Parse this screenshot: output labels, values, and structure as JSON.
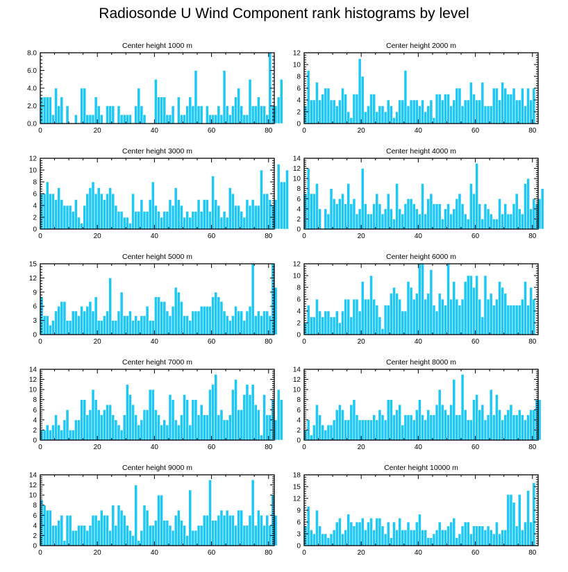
{
  "title": "Radiosonde U Wind Component rank histograms by level",
  "chart_data": [
    {
      "type": "bar",
      "title": "Center height 1000 m",
      "xlim": [
        0,
        82
      ],
      "ylim": [
        0,
        8
      ],
      "xticks": [
        0,
        20,
        40,
        60,
        80
      ],
      "yticks": [
        0,
        2,
        4,
        6,
        8
      ],
      "ytick_labels": [
        "0.0",
        "2.0",
        "4.0",
        "6.0",
        "8.0"
      ],
      "values": [
        3,
        3,
        3,
        3,
        1,
        4,
        2,
        3,
        0,
        2,
        0,
        0,
        1,
        0,
        4,
        4,
        1,
        1,
        1,
        3,
        2,
        1,
        0,
        2,
        2,
        2,
        0,
        2,
        1,
        1,
        1,
        1,
        0,
        2,
        4,
        2,
        1,
        0,
        0,
        0,
        5,
        3,
        3,
        3,
        1,
        1,
        2,
        0,
        3,
        1,
        1,
        2,
        3,
        2,
        6,
        2,
        2,
        0,
        2,
        1,
        1,
        1,
        2,
        1,
        6,
        2,
        1,
        2,
        3,
        4,
        2,
        1,
        1,
        5,
        2,
        2,
        3,
        2,
        2,
        1,
        8,
        2,
        2,
        3,
        5
      ]
    },
    {
      "type": "bar",
      "title": "Center height 2000 m",
      "xlim": [
        0,
        82
      ],
      "ylim": [
        0,
        12
      ],
      "xticks": [
        0,
        20,
        40,
        60,
        80
      ],
      "yticks": [
        0,
        2,
        4,
        6,
        8,
        10,
        12
      ],
      "ytick_labels": [
        "0",
        "2",
        "4",
        "6",
        "8",
        "10",
        "12"
      ],
      "values": [
        3,
        9,
        4,
        4,
        7,
        4,
        5,
        6,
        6,
        4,
        4,
        3,
        4,
        6,
        5,
        2,
        1,
        5,
        5,
        11,
        8,
        2,
        3,
        5,
        5,
        2,
        3,
        3,
        2,
        4,
        3,
        1,
        2,
        4,
        4,
        9,
        3,
        4,
        4,
        4,
        3,
        4,
        2,
        3,
        4,
        1,
        5,
        5,
        4,
        5,
        5,
        3,
        4,
        6,
        6,
        3,
        4,
        4,
        7,
        5,
        4,
        4,
        7,
        3,
        3,
        3,
        6,
        6,
        4,
        7,
        6,
        5,
        5,
        6,
        4,
        4,
        6,
        3,
        6,
        4,
        6
      ]
    },
    {
      "type": "bar",
      "title": "Center height 3000 m",
      "xlim": [
        0,
        82
      ],
      "ylim": [
        0,
        12
      ],
      "xticks": [
        0,
        20,
        40,
        60,
        80
      ],
      "yticks": [
        0,
        2,
        4,
        6,
        8,
        10,
        12
      ],
      "ytick_labels": [
        "0",
        "2",
        "4",
        "6",
        "8",
        "10",
        "12"
      ],
      "values": [
        6,
        6,
        8,
        6,
        6,
        5,
        7,
        5,
        4,
        4,
        4,
        3,
        5,
        2,
        1,
        4,
        6,
        7,
        8,
        6,
        7,
        6,
        5,
        6,
        7,
        6,
        4,
        3,
        3,
        2,
        2,
        1,
        6,
        3,
        3,
        5,
        3,
        3,
        5,
        8,
        4,
        3,
        2,
        3,
        3,
        5,
        4,
        7,
        5,
        4,
        2,
        3,
        2,
        3,
        3,
        5,
        3,
        5,
        5,
        3,
        9,
        5,
        4,
        2,
        3,
        2,
        7,
        6,
        4,
        4,
        3,
        2,
        5,
        4,
        5,
        4,
        4,
        10,
        6,
        6,
        5,
        4,
        5,
        11,
        8,
        8,
        10
      ]
    },
    {
      "type": "bar",
      "title": "Center height 4000 m",
      "xlim": [
        0,
        82
      ],
      "ylim": [
        0,
        14
      ],
      "xticks": [
        0,
        20,
        40,
        60,
        80
      ],
      "yticks": [
        0,
        2,
        4,
        6,
        8,
        10,
        12,
        14
      ],
      "ytick_labels": [
        "0",
        "2",
        "4",
        "6",
        "8",
        "10",
        "12",
        "14"
      ],
      "values": [
        7,
        12,
        7,
        7,
        9,
        4,
        0,
        4,
        3,
        8,
        6,
        5,
        6,
        7,
        5,
        9,
        5,
        6,
        3,
        4,
        12,
        5,
        3,
        3,
        5,
        7,
        5,
        3,
        4,
        7,
        4,
        2,
        9,
        4,
        3,
        5,
        6,
        6,
        5,
        4,
        3,
        9,
        3,
        6,
        7,
        5,
        5,
        5,
        2,
        4,
        5,
        3,
        4,
        6,
        7,
        5,
        3,
        2,
        9,
        7,
        13,
        5,
        2,
        5,
        4,
        3,
        2,
        2,
        6,
        3,
        5,
        3,
        3,
        5,
        7,
        4,
        3,
        9,
        10,
        4,
        6,
        5,
        6,
        8
      ]
    },
    {
      "type": "bar",
      "title": "Center height 5000 m",
      "xlim": [
        0,
        82
      ],
      "ylim": [
        0,
        15
      ],
      "xticks": [
        0,
        20,
        40,
        60,
        80
      ],
      "yticks": [
        0,
        3,
        6,
        9,
        12,
        15
      ],
      "ytick_labels": [
        "0",
        "3",
        "6",
        "9",
        "12",
        "15"
      ],
      "values": [
        8,
        4,
        4,
        2,
        3,
        5,
        6,
        7,
        7,
        3,
        3,
        5,
        5,
        4,
        6,
        5,
        6,
        7,
        5,
        8,
        3,
        3,
        4,
        5,
        12,
        3,
        3,
        5,
        9,
        4,
        4,
        5,
        3,
        4,
        3,
        4,
        4,
        6,
        3,
        3,
        8,
        8,
        7,
        7,
        5,
        4,
        6,
        10,
        9,
        7,
        4,
        4,
        3,
        5,
        5,
        5,
        6,
        6,
        6,
        6,
        8,
        9,
        8,
        7,
        5,
        4,
        3,
        4,
        6,
        5,
        5,
        3,
        5,
        6,
        15,
        4,
        5,
        4,
        5,
        5,
        4,
        15,
        10
      ]
    },
    {
      "type": "bar",
      "title": "Center height 6000 m",
      "xlim": [
        0,
        82
      ],
      "ylim": [
        0,
        12
      ],
      "xticks": [
        0,
        20,
        40,
        60,
        80
      ],
      "yticks": [
        0,
        2,
        4,
        6,
        8,
        10,
        12
      ],
      "ytick_labels": [
        "0",
        "2",
        "4",
        "6",
        "8",
        "10",
        "12"
      ],
      "values": [
        2,
        5,
        3,
        3,
        6,
        4,
        3,
        4,
        4,
        3,
        3,
        4,
        2,
        4,
        6,
        6,
        3,
        6,
        6,
        4,
        9,
        6,
        6,
        10,
        6,
        5,
        3,
        1,
        5,
        5,
        7,
        8,
        7,
        6,
        4,
        4,
        9,
        8,
        6,
        7,
        12,
        12,
        6,
        7,
        11,
        5,
        4,
        7,
        6,
        5,
        12,
        6,
        9,
        6,
        5,
        6,
        9,
        10,
        10,
        8,
        10,
        6,
        3,
        10,
        6,
        7,
        5,
        6,
        9,
        8,
        7,
        5,
        5,
        5,
        5,
        5,
        6,
        9,
        5,
        8,
        6
      ]
    },
    {
      "type": "bar",
      "title": "Center height 7000 m",
      "xlim": [
        0,
        82
      ],
      "ylim": [
        0,
        14
      ],
      "xticks": [
        0,
        20,
        40,
        60,
        80
      ],
      "yticks": [
        0,
        2,
        4,
        6,
        8,
        10,
        12,
        14
      ],
      "ytick_labels": [
        "0",
        "2",
        "4",
        "6",
        "8",
        "10",
        "12",
        "14"
      ],
      "values": [
        2,
        2,
        3,
        2,
        3,
        5,
        3,
        2,
        4,
        6,
        2,
        2,
        4,
        4,
        8,
        8,
        5,
        6,
        10,
        8,
        6,
        5,
        6,
        7,
        7,
        5,
        4,
        3,
        2,
        5,
        11,
        9,
        7,
        5,
        3,
        4,
        6,
        6,
        10,
        10,
        6,
        5,
        3,
        4,
        3,
        9,
        8,
        4,
        3,
        5,
        9,
        8,
        3,
        8,
        8,
        5,
        7,
        5,
        5,
        10,
        11,
        13,
        5,
        6,
        4,
        4,
        5,
        10,
        12,
        6,
        6,
        9,
        11,
        9,
        11,
        7,
        6,
        1,
        9,
        5,
        5,
        8,
        4,
        10,
        8
      ]
    },
    {
      "type": "bar",
      "title": "Center height 8000 m",
      "xlim": [
        0,
        82
      ],
      "ylim": [
        0,
        14
      ],
      "xticks": [
        0,
        20,
        40,
        60,
        80
      ],
      "yticks": [
        0,
        2,
        4,
        6,
        8,
        10,
        12,
        14
      ],
      "ytick_labels": [
        "0",
        "2",
        "4",
        "6",
        "8",
        "10",
        "12",
        "14"
      ],
      "values": [
        2,
        4,
        1,
        3,
        7,
        5,
        3,
        2,
        3,
        3,
        4,
        6,
        7,
        6,
        4,
        4,
        7,
        8,
        5,
        4,
        4,
        4,
        4,
        4,
        5,
        4,
        6,
        5,
        4,
        8,
        8,
        5,
        6,
        7,
        3,
        5,
        5,
        5,
        4,
        6,
        8,
        5,
        4,
        6,
        5,
        5,
        7,
        10,
        7,
        6,
        5,
        7,
        12,
        5,
        5,
        13,
        6,
        4,
        4,
        8,
        9,
        6,
        7,
        4,
        5,
        10,
        5,
        9,
        6,
        4,
        5,
        6,
        7,
        5,
        5,
        6,
        5,
        4,
        5,
        6,
        6,
        8,
        8
      ]
    },
    {
      "type": "bar",
      "title": "Center height 9000 m",
      "xlim": [
        0,
        82
      ],
      "ylim": [
        0,
        14
      ],
      "xticks": [
        0,
        20,
        40,
        60,
        80
      ],
      "yticks": [
        0,
        2,
        4,
        6,
        8,
        10,
        12,
        14
      ],
      "ytick_labels": [
        "0",
        "2",
        "4",
        "6",
        "8",
        "10",
        "12",
        "14"
      ],
      "values": [
        9,
        8,
        7,
        7,
        4,
        4,
        5,
        6,
        1,
        6,
        6,
        3,
        3,
        4,
        4,
        4,
        3,
        4,
        6,
        6,
        5,
        7,
        6,
        6,
        3,
        8,
        4,
        8,
        7,
        6,
        4,
        3,
        2,
        12,
        1,
        3,
        8,
        7,
        4,
        4,
        5,
        10,
        10,
        5,
        5,
        4,
        3,
        6,
        7,
        5,
        4,
        2,
        11,
        3,
        3,
        4,
        4,
        6,
        6,
        13,
        5,
        5,
        6,
        7,
        6,
        7,
        6,
        6,
        4,
        7,
        7,
        4,
        4,
        6,
        13,
        4,
        7,
        6,
        4,
        6,
        4,
        10,
        6
      ]
    },
    {
      "type": "bar",
      "title": "Center height 10000 m",
      "xlim": [
        0,
        82
      ],
      "ylim": [
        0,
        18
      ],
      "xticks": [
        0,
        20,
        40,
        60,
        80
      ],
      "yticks": [
        0,
        3,
        6,
        9,
        12,
        15,
        18
      ],
      "ytick_labels": [
        "0",
        "3",
        "6",
        "9",
        "12",
        "15",
        "18"
      ],
      "values": [
        5,
        10,
        4,
        3,
        9,
        5,
        3,
        3,
        2,
        3,
        4,
        6,
        7,
        3,
        4,
        8,
        6,
        5,
        6,
        6,
        7,
        4,
        6,
        7,
        4,
        7,
        7,
        5,
        3,
        6,
        2,
        6,
        4,
        7,
        4,
        4,
        6,
        4,
        4,
        6,
        8,
        4,
        4,
        2,
        2,
        3,
        4,
        6,
        4,
        4,
        5,
        6,
        7,
        2,
        3,
        5,
        6,
        6,
        3,
        5,
        5,
        5,
        5,
        4,
        5,
        4,
        3,
        6,
        3,
        4,
        4,
        13,
        13,
        11,
        5,
        13,
        4,
        6,
        14,
        6,
        16
      ]
    }
  ]
}
